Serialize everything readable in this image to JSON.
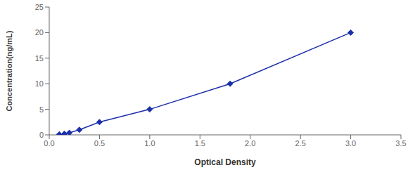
{
  "chart_data": {
    "type": "line",
    "xlabel": "Optical Density",
    "ylabel": "Concentration(ng/mL)",
    "x": [
      0.1,
      0.15,
      0.2,
      0.3,
      0.5,
      1.0,
      1.8,
      3.0
    ],
    "values": [
      0.1,
      0.2,
      0.4,
      1.0,
      2.5,
      5.0,
      10.0,
      20.0
    ],
    "color": "#1c2faa",
    "marker": "diamond",
    "xlim": [
      0,
      3.5
    ],
    "ylim": [
      0,
      25
    ],
    "xticks": [
      {
        "value": 0,
        "label": "0.0"
      },
      0.5,
      {
        "value": 1,
        "label": "1.0"
      },
      1.5,
      {
        "value": 2,
        "label": "2.0"
      },
      2.5,
      {
        "value": 3,
        "label": "3.0"
      },
      3.5
    ],
    "yticks": [
      0,
      5,
      10,
      15,
      20,
      25
    ]
  }
}
